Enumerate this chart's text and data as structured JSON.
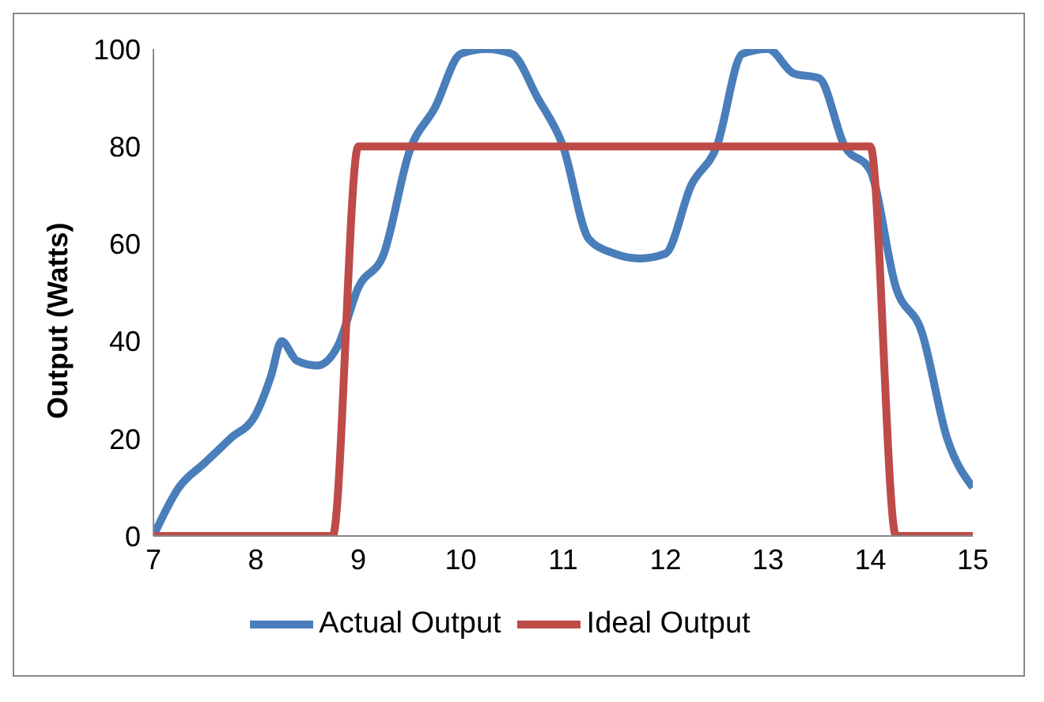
{
  "chart_data": {
    "type": "line",
    "ylabel": "Output (Watts)",
    "xlim": [
      7,
      15
    ],
    "xticks": [
      7,
      8,
      9,
      10,
      11,
      12,
      13,
      14,
      15
    ],
    "ylim": [
      0,
      100
    ],
    "yticks": [
      0,
      20,
      40,
      60,
      80,
      100
    ],
    "grid": false,
    "legend": "bottom",
    "marker": "none",
    "line_style": "solid",
    "series": [
      {
        "name": "Actual Output",
        "color": "#4a7ebb",
        "x": [
          7,
          7.25,
          7.5,
          7.75,
          8,
          8.15,
          8.25,
          8.4,
          8.6,
          8.8,
          9,
          9.25,
          9.5,
          9.75,
          10,
          10.25,
          10.5,
          10.75,
          11,
          11.25,
          11.5,
          11.75,
          12,
          12.25,
          12.5,
          12.75,
          13,
          13.25,
          13.5,
          13.75,
          14,
          14.25,
          14.5,
          14.75,
          15
        ],
        "values": [
          0,
          10,
          15,
          20,
          25,
          33,
          40,
          36,
          35,
          39,
          51,
          58,
          79,
          88,
          99,
          100,
          99,
          90,
          80,
          61,
          58,
          57,
          58,
          72,
          80,
          99,
          100,
          95,
          94,
          80,
          75,
          51,
          42,
          20,
          10
        ]
      },
      {
        "name": "Ideal Output",
        "color": "#be4b48",
        "x": [
          7,
          8.75,
          9,
          14,
          14.25,
          15
        ],
        "values": [
          0,
          0,
          80,
          80,
          0,
          0
        ]
      }
    ]
  }
}
